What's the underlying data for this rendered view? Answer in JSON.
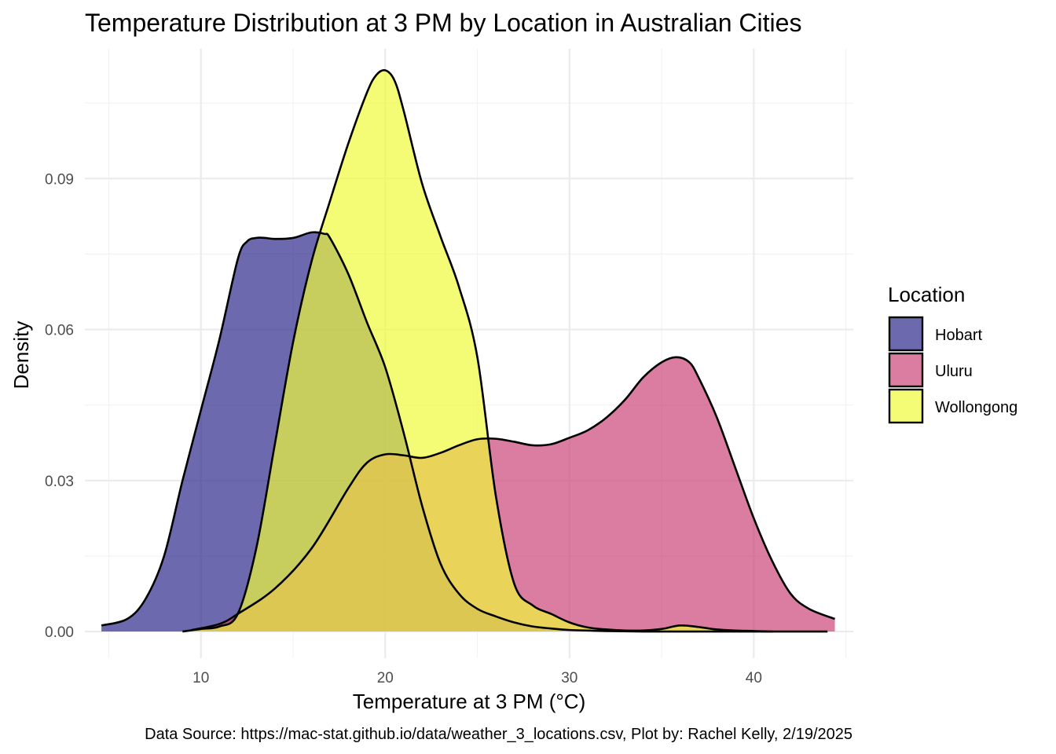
{
  "chart_data": {
    "type": "area",
    "subtype": "density",
    "title": "Temperature Distribution at 3 PM by Location in Australian Cities",
    "xlabel": "Temperature at 3 PM (°C)",
    "ylabel": "Density",
    "caption": "Data Source: https://mac-stat.github.io/data/weather_3_locations.csv, Plot by: Rachel Kelly, 2/19/2025",
    "xlim": [
      3.7,
      45.4
    ],
    "ylim": [
      -0.0053,
      0.1158
    ],
    "x_ticks": [
      10,
      20,
      30,
      40
    ],
    "x_tick_labels": [
      "10",
      "20",
      "30",
      "40"
    ],
    "y_ticks": [
      0.0,
      0.03,
      0.06,
      0.09
    ],
    "y_tick_labels": [
      "0.00",
      "0.03",
      "0.06",
      "0.09"
    ],
    "grid": true,
    "legend": {
      "title": "Location",
      "position": "right",
      "entries": [
        "Hobart",
        "Uluru",
        "Wollongong"
      ]
    },
    "fill_opacity": 0.7,
    "series": [
      {
        "name": "Hobart",
        "color": "#2F2A8C",
        "x": [
          4.6,
          6.0,
          7.0,
          8.0,
          9.0,
          10.0,
          11.0,
          12.0,
          12.5,
          13.0,
          13.5,
          14.0,
          15.0,
          16.0,
          16.7,
          17.0,
          18.0,
          19.0,
          20.0,
          21.0,
          22.0,
          23.0,
          24.0,
          25.0,
          26.0,
          27.0,
          28.0,
          29.0,
          30.0,
          32.0,
          34.0,
          36.0,
          38.0,
          40.0,
          41.0
        ],
        "y": [
          0.0012,
          0.0025,
          0.0065,
          0.015,
          0.03,
          0.044,
          0.058,
          0.074,
          0.0775,
          0.0782,
          0.0782,
          0.078,
          0.0782,
          0.0793,
          0.079,
          0.0782,
          0.071,
          0.0615,
          0.0525,
          0.0395,
          0.025,
          0.0135,
          0.0075,
          0.0045,
          0.003,
          0.0018,
          0.001,
          0.0006,
          0.0003,
          0.0001,
          0.0,
          0.0,
          0.0,
          0.0,
          0.0
        ]
      },
      {
        "name": "Uluru",
        "color": "#CC4679",
        "x": [
          9.5,
          11.0,
          12.0,
          14.0,
          16.0,
          18.0,
          19.0,
          20.0,
          21.0,
          22.0,
          23.0,
          24.0,
          25.0,
          26.0,
          27.0,
          28.0,
          29.0,
          30.0,
          31.0,
          32.0,
          33.0,
          34.0,
          35.0,
          35.8,
          36.5,
          37.0,
          38.0,
          39.0,
          40.0,
          41.0,
          42.0,
          43.0,
          44.4
        ],
        "y": [
          0.0003,
          0.0015,
          0.0035,
          0.0085,
          0.0165,
          0.0285,
          0.0335,
          0.0352,
          0.035,
          0.0345,
          0.0355,
          0.037,
          0.0382,
          0.0383,
          0.0377,
          0.037,
          0.0372,
          0.0385,
          0.04,
          0.0425,
          0.046,
          0.0505,
          0.0535,
          0.0545,
          0.0535,
          0.0505,
          0.0425,
          0.0325,
          0.0225,
          0.014,
          0.0075,
          0.0045,
          0.0025
        ]
      },
      {
        "name": "Wollongong",
        "color": "#EFFA3A",
        "x": [
          9.0,
          10.0,
          11.0,
          12.0,
          13.0,
          14.0,
          15.0,
          16.0,
          17.0,
          18.0,
          19.0,
          19.5,
          20.0,
          20.5,
          21.0,
          22.0,
          23.0,
          24.0,
          25.0,
          26.0,
          27.0,
          28.0,
          29.0,
          30.0,
          31.0,
          32.0,
          33.0,
          34.0,
          35.0,
          36.0,
          37.0,
          38.0,
          39.0,
          40.0,
          41.0,
          42.0,
          43.0,
          44.0
        ],
        "y": [
          0.0,
          0.0005,
          0.001,
          0.0035,
          0.0165,
          0.037,
          0.0575,
          0.0735,
          0.0855,
          0.097,
          0.107,
          0.1105,
          0.1115,
          0.1095,
          0.1035,
          0.089,
          0.0785,
          0.0685,
          0.0545,
          0.027,
          0.0095,
          0.0052,
          0.0035,
          0.0018,
          0.0008,
          0.0004,
          0.0002,
          0.0002,
          0.0005,
          0.0012,
          0.0009,
          0.0004,
          0.0002,
          0.0001,
          0.0,
          0.0,
          0.0,
          0.0
        ]
      }
    ]
  }
}
